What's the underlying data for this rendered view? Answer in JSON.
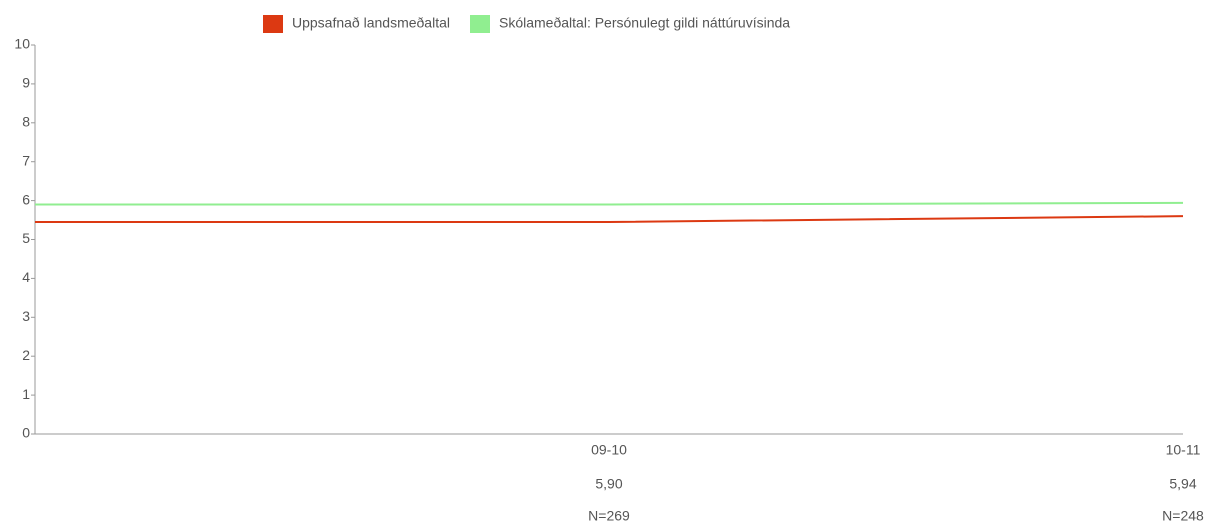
{
  "chart_data": {
    "type": "line",
    "categories": [
      null,
      "09-10",
      "10-11"
    ],
    "series": [
      {
        "name": "Uppsafnað landsmeðaltal",
        "color": "#dc3912",
        "values": [
          5.45,
          5.45,
          5.6
        ]
      },
      {
        "name": "Skólameðaltal: Persónulegt gildi náttúruvísinda",
        "color": "#90ee90",
        "values": [
          5.9,
          5.9,
          5.94
        ],
        "value_labels": [
          null,
          "5,90",
          "5,94"
        ]
      }
    ],
    "n_labels": [
      null,
      "N=269",
      "N=248"
    ],
    "ylim": [
      0,
      10
    ],
    "yticks": [
      0,
      1,
      2,
      3,
      4,
      5,
      6,
      7,
      8,
      9,
      10
    ],
    "grid": false,
    "legend": "top"
  }
}
